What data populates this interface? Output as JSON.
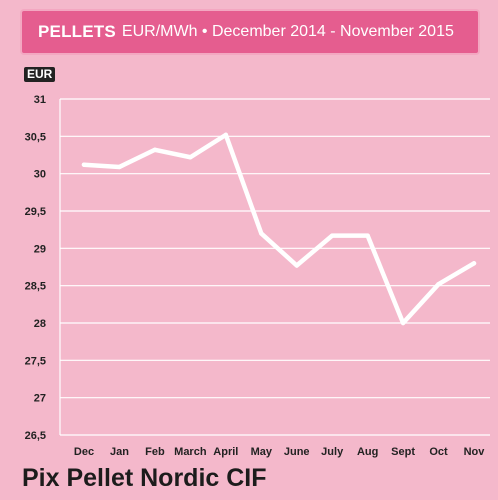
{
  "header": {
    "title": "PELLETS",
    "subtitle": "EUR/MWh • December 2014 - November 2015"
  },
  "footer": {
    "title": "Pix Pellet Nordic CIF"
  },
  "colors": {
    "background": "#f4b8cb",
    "header_bg": "#e55d8f",
    "line": "#ffffff",
    "grid": "#ffffff"
  },
  "chart_data": {
    "type": "line",
    "title": "PELLETS EUR/MWh • December 2014 - November 2015",
    "ylabel": "EUR",
    "xlabel": "",
    "categories": [
      "Dec",
      "Jan",
      "Feb",
      "March",
      "April",
      "May",
      "June",
      "July",
      "Aug",
      "Sept",
      "Oct",
      "Nov"
    ],
    "series": [
      {
        "values": [
          30.12,
          30.09,
          30.32,
          30.22,
          30.52,
          29.2,
          28.77,
          29.17,
          29.17,
          28.0,
          28.52,
          28.8
        ]
      }
    ],
    "ylim": [
      26.5,
      31
    ],
    "yticks": [
      "26,5",
      "27",
      "27,5",
      "28",
      "28,5",
      "29",
      "29,5",
      "30",
      "30,5",
      "31"
    ],
    "grid": true,
    "legend": "none"
  }
}
